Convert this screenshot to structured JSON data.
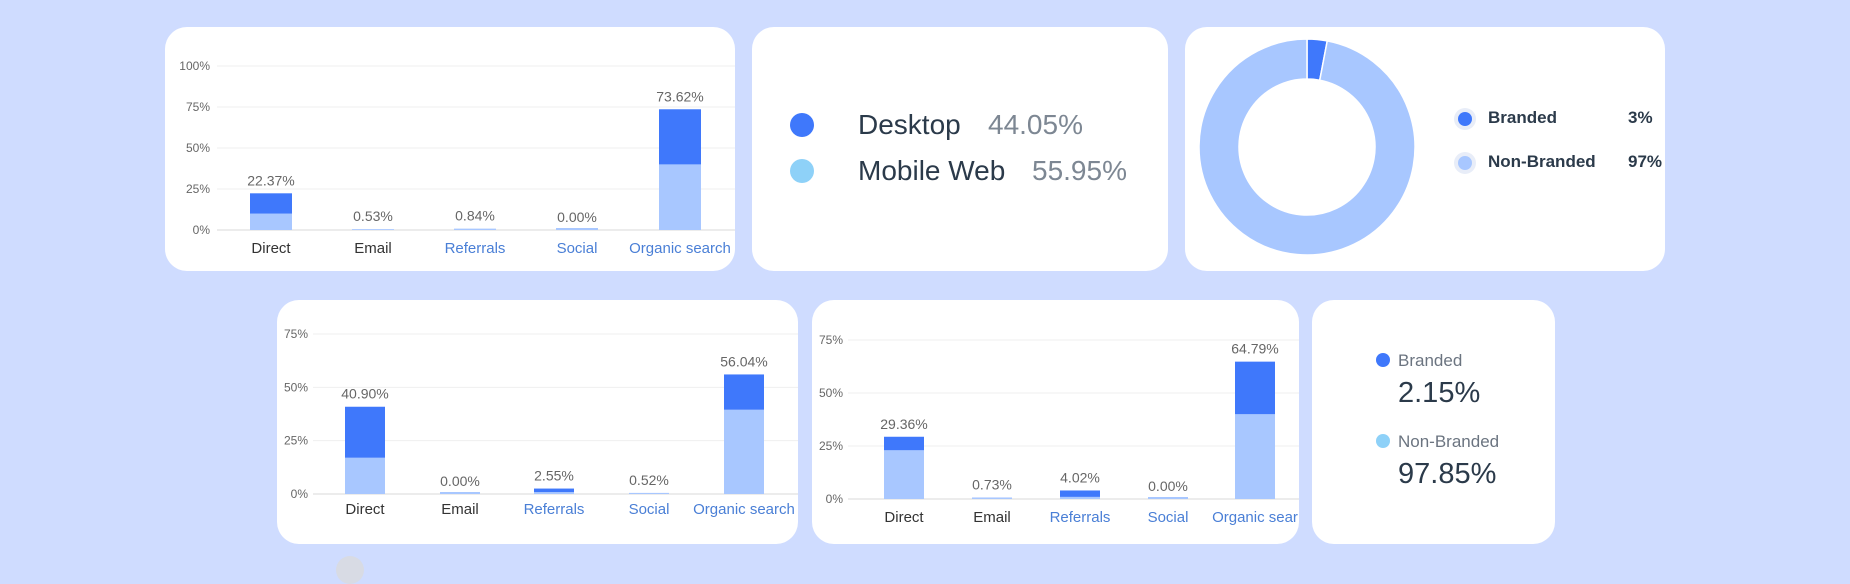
{
  "colors": {
    "background": "#cfdcff",
    "dark_blue": "#3f78fb",
    "light_blue": "#a8c7ff",
    "sky_blue": "#8ed1f8",
    "axis_text": "#666666",
    "link_text": "#4a7fd6",
    "dark_text": "#2b3a4a"
  },
  "chart_data": [
    {
      "type": "bar",
      "stacked": true,
      "categories": [
        "Direct",
        "Email",
        "Referrals",
        "Social",
        "Organic search"
      ],
      "category_links": [
        false,
        false,
        true,
        true,
        true
      ],
      "ylim": [
        0,
        100
      ],
      "yticks": [
        "0%",
        "25%",
        "50%",
        "75%",
        "100%"
      ],
      "ytick_values": [
        0,
        25,
        50,
        75,
        100
      ],
      "totals": [
        22.37,
        0.53,
        0.84,
        0.0,
        73.62
      ],
      "total_labels": [
        "22.37%",
        "0.53%",
        "0.84%",
        "0.00%",
        "73.62%"
      ],
      "series": [
        {
          "values": [
            10.0,
            0.53,
            0.84,
            0.0,
            40.0
          ],
          "color": "#a8c7ff"
        },
        {
          "values": [
            12.37,
            0.0,
            0.0,
            0.0,
            33.62
          ],
          "color": "#3f78fb"
        }
      ]
    },
    {
      "type": "bar",
      "stacked": true,
      "categories": [
        "Direct",
        "Email",
        "Referrals",
        "Social",
        "Organic search"
      ],
      "category_links": [
        false,
        false,
        true,
        true,
        true
      ],
      "ylim": [
        0,
        75
      ],
      "yticks": [
        "0%",
        "25%",
        "50%",
        "75%"
      ],
      "ytick_values": [
        0,
        25,
        50,
        75
      ],
      "totals": [
        40.9,
        0.0,
        2.55,
        0.52,
        56.04
      ],
      "total_labels": [
        "40.90%",
        "0.00%",
        "2.55%",
        "0.52%",
        "56.04%"
      ],
      "series": [
        {
          "values": [
            17.0,
            0.0,
            0.9,
            0.52,
            39.5
          ],
          "color": "#a8c7ff"
        },
        {
          "values": [
            23.9,
            0.0,
            1.65,
            0.0,
            16.54
          ],
          "color": "#3f78fb"
        }
      ]
    },
    {
      "type": "bar",
      "stacked": true,
      "categories": [
        "Direct",
        "Email",
        "Referrals",
        "Social",
        "Organic sear"
      ],
      "category_links": [
        false,
        false,
        true,
        true,
        true
      ],
      "ylim": [
        0,
        75
      ],
      "yticks": [
        "0%",
        "25%",
        "50%",
        "75%"
      ],
      "ytick_values": [
        0,
        25,
        50,
        75
      ],
      "totals": [
        29.36,
        0.73,
        4.02,
        0.0,
        64.79
      ],
      "total_labels": [
        "29.36%",
        "0.73%",
        "4.02%",
        "0.00%",
        "64.79%"
      ],
      "series": [
        {
          "values": [
            23.0,
            0.73,
            1.0,
            0.0,
            40.0
          ],
          "color": "#a8c7ff"
        },
        {
          "values": [
            6.36,
            0.0,
            3.02,
            0.0,
            24.79
          ],
          "color": "#3f78fb"
        }
      ]
    },
    {
      "type": "pie",
      "donut": true,
      "labels": [
        "Branded",
        "Non-Branded"
      ],
      "values": [
        3,
        97
      ],
      "value_labels": [
        "3%",
        "97%"
      ],
      "colors": [
        "#3f78fb",
        "#a8c7ff"
      ],
      "legend": "right"
    }
  ],
  "device_split": {
    "items": [
      {
        "label": "Desktop",
        "value": "44.05%",
        "color": "#3f78fb"
      },
      {
        "label": "Mobile Web",
        "value": "55.95%",
        "color": "#8ed1f8"
      }
    ]
  },
  "branded_split": {
    "items": [
      {
        "label": "Branded",
        "value": "2.15%",
        "color": "#3f78fb"
      },
      {
        "label": "Non-Branded",
        "value": "97.85%",
        "color": "#8ed1f8"
      }
    ]
  }
}
